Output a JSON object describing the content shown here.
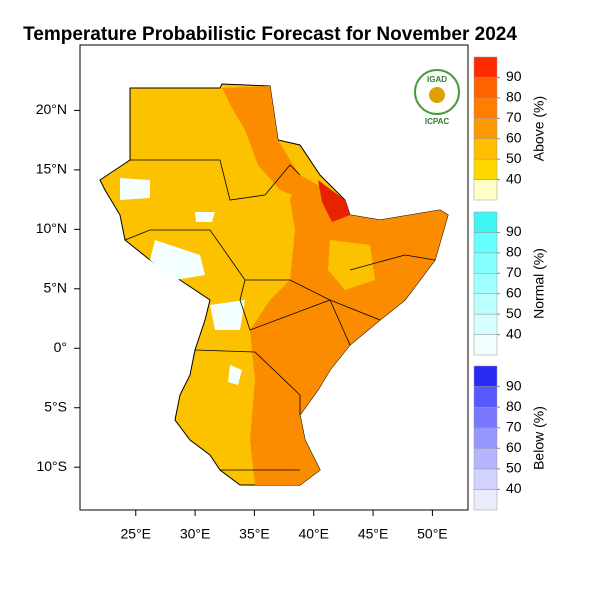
{
  "title": "Temperature Probabilistic Forecast for November 2024",
  "map": {
    "xlim": [
      20.3,
      53.0
    ],
    "ylim": [
      -13.6,
      25.5
    ],
    "xticks": [
      {
        "value": 25,
        "label": "25°E"
      },
      {
        "value": 30,
        "label": "30°E"
      },
      {
        "value": 35,
        "label": "35°E"
      },
      {
        "value": 40,
        "label": "40°E"
      },
      {
        "value": 45,
        "label": "45°E"
      },
      {
        "value": 50,
        "label": "50°E"
      }
    ],
    "yticks": [
      {
        "value": 20,
        "label": "20°N"
      },
      {
        "value": 15,
        "label": "15°N"
      },
      {
        "value": 10,
        "label": "10°N"
      },
      {
        "value": 5,
        "label": "5°N"
      },
      {
        "value": 0,
        "label": "0°"
      },
      {
        "value": -5,
        "label": "5°S"
      },
      {
        "value": -10,
        "label": "10°S"
      }
    ]
  },
  "logo": {
    "top": "IGAD",
    "bottom": "ICPAC"
  },
  "colorbars": [
    {
      "title": "Above (%)",
      "range": [
        30,
        100
      ],
      "ticks": [
        40,
        50,
        60,
        70,
        80,
        90
      ],
      "colors": [
        "#ffffc8",
        "#ffd800",
        "#ffbf00",
        "#ff9900",
        "#ff7d00",
        "#ff6200",
        "#ff2a00"
      ]
    },
    {
      "title": "Normal (%)",
      "range": [
        30,
        100
      ],
      "ticks": [
        40,
        50,
        60,
        70,
        80,
        90
      ],
      "colors": [
        "#f0ffff",
        "#d8ffff",
        "#bcffff",
        "#a2ffff",
        "#86ffff",
        "#66ffff",
        "#40f5f5"
      ]
    },
    {
      "title": "Below (%)",
      "range": [
        30,
        100
      ],
      "ticks": [
        40,
        50,
        60,
        70,
        80,
        90
      ],
      "colors": [
        "#ececff",
        "#d2d2ff",
        "#b4b4ff",
        "#9696ff",
        "#7878ff",
        "#5858ff",
        "#2a2af2"
      ]
    }
  ]
}
